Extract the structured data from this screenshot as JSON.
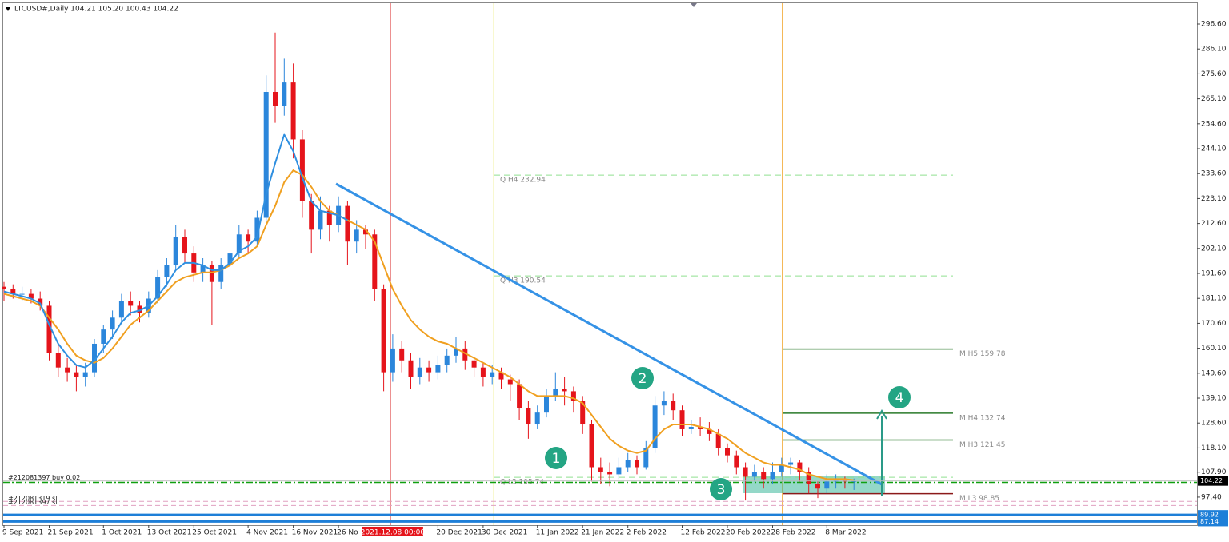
{
  "chart_data": {
    "type": "candlestick",
    "header": "LTCUSD#,Daily  104.21 105.20 100.43 104.22",
    "up_color": "#2b86db",
    "down_color": "#e5141b",
    "ylim": [
      85.6,
      306.7
    ],
    "yticks": [
      {
        "value": 296.6,
        "label": "296.60"
      },
      {
        "value": 286.1,
        "label": "286.10"
      },
      {
        "value": 275.6,
        "label": "275.60"
      },
      {
        "value": 265.1,
        "label": "265.10"
      },
      {
        "value": 254.6,
        "label": "254.60"
      },
      {
        "value": 244.1,
        "label": "244.10"
      },
      {
        "value": 233.6,
        "label": "233.60"
      },
      {
        "value": 223.1,
        "label": "223.10"
      },
      {
        "value": 212.6,
        "label": "212.60"
      },
      {
        "value": 202.1,
        "label": "202.10"
      },
      {
        "value": 191.6,
        "label": "191.60"
      },
      {
        "value": 181.1,
        "label": "181.10"
      },
      {
        "value": 170.6,
        "label": "170.60"
      },
      {
        "value": 160.1,
        "label": "160.10"
      },
      {
        "value": 149.6,
        "label": "149.60"
      },
      {
        "value": 139.1,
        "label": "139.10"
      },
      {
        "value": 128.6,
        "label": "128.60"
      },
      {
        "value": 118.1,
        "label": "118.10"
      },
      {
        "value": 107.9,
        "label": "107.90"
      },
      {
        "value": 97.4,
        "label": "97.40"
      }
    ],
    "separator": "2021.12.08 00:00",
    "categories": [
      "9 Sep 2021",
      null,
      null,
      null,
      null,
      "21 Sep 2021",
      null,
      null,
      null,
      null,
      null,
      "1 Oct 2021",
      null,
      null,
      null,
      null,
      "13 Oct 2021",
      null,
      null,
      null,
      null,
      "25 Oct 2021",
      null,
      null,
      null,
      null,
      null,
      "4 Nov 2021",
      null,
      null,
      null,
      null,
      "16 Nov 2021",
      null,
      null,
      null,
      null,
      "26 No",
      null,
      null,
      null,
      null,
      null,
      "2021.12.08 00:00",
      null,
      null,
      null,
      null,
      "20 Dec 2021",
      null,
      null,
      null,
      null,
      "30 Dec 2021",
      null,
      null,
      null,
      null,
      null,
      "11 Jan 2022",
      null,
      null,
      null,
      null,
      "21 Jan 2022",
      null,
      null,
      null,
      null,
      "2 Feb 2022",
      null,
      null,
      null,
      null,
      null,
      "12 Feb 2022",
      null,
      null,
      null,
      null,
      "20 Feb 2022",
      null,
      null,
      null,
      null,
      "28 Feb 2022",
      null,
      null,
      null,
      null,
      null,
      "8 Mar 2022",
      null,
      null,
      null
    ],
    "candles": [
      [
        186,
        188,
        180,
        185
      ],
      [
        185,
        187,
        181,
        183
      ],
      [
        183,
        186,
        180,
        183
      ],
      [
        183,
        185,
        179,
        181
      ],
      [
        181,
        184,
        176,
        178
      ],
      [
        178,
        180,
        155,
        158
      ],
      [
        158,
        162,
        148,
        152
      ],
      [
        152,
        156,
        146,
        150
      ],
      [
        150,
        153,
        142,
        148
      ],
      [
        148,
        154,
        144,
        150
      ],
      [
        150,
        164,
        148,
        162
      ],
      [
        162,
        170,
        158,
        168
      ],
      [
        168,
        176,
        164,
        173
      ],
      [
        173,
        183,
        171,
        180
      ],
      [
        180,
        184,
        174,
        178
      ],
      [
        178,
        180,
        171,
        175
      ],
      [
        175,
        184,
        173,
        181
      ],
      [
        181,
        193,
        179,
        190
      ],
      [
        190,
        198,
        186,
        195
      ],
      [
        195,
        212,
        193,
        207
      ],
      [
        207,
        210,
        196,
        200
      ],
      [
        200,
        203,
        188,
        192
      ],
      [
        192,
        198,
        188,
        195
      ],
      [
        195,
        197,
        170,
        188
      ],
      [
        188,
        198,
        185,
        195
      ],
      [
        195,
        203,
        192,
        200
      ],
      [
        200,
        212,
        198,
        208
      ],
      [
        208,
        210,
        200,
        205
      ],
      [
        205,
        218,
        203,
        215
      ],
      [
        215,
        275,
        213,
        268
      ],
      [
        268,
        293,
        255,
        262
      ],
      [
        262,
        282,
        258,
        272
      ],
      [
        272,
        280,
        240,
        248
      ],
      [
        248,
        252,
        215,
        222
      ],
      [
        222,
        225,
        200,
        210
      ],
      [
        210,
        224,
        206,
        218
      ],
      [
        218,
        220,
        205,
        212
      ],
      [
        212,
        224,
        209,
        220
      ],
      [
        220,
        222,
        195,
        205
      ],
      [
        205,
        214,
        200,
        210
      ],
      [
        210,
        212,
        202,
        208
      ],
      [
        208,
        210,
        180,
        185
      ],
      [
        185,
        187,
        142,
        150
      ],
      [
        150,
        166,
        146,
        160
      ],
      [
        160,
        163,
        150,
        155
      ],
      [
        155,
        158,
        143,
        148
      ],
      [
        148,
        156,
        145,
        152
      ],
      [
        152,
        155,
        146,
        150
      ],
      [
        150,
        157,
        147,
        153
      ],
      [
        153,
        160,
        150,
        157
      ],
      [
        157,
        165,
        154,
        160
      ],
      [
        160,
        163,
        151,
        155
      ],
      [
        155,
        156,
        148,
        152
      ],
      [
        152,
        154,
        144,
        148
      ],
      [
        148,
        153,
        145,
        150
      ],
      [
        150,
        152,
        143,
        147
      ],
      [
        147,
        149,
        138,
        145
      ],
      [
        145,
        147,
        130,
        135
      ],
      [
        135,
        138,
        122,
        128
      ],
      [
        128,
        136,
        126,
        133
      ],
      [
        133,
        143,
        131,
        140
      ],
      [
        140,
        150,
        138,
        143
      ],
      [
        143,
        148,
        136,
        142
      ],
      [
        142,
        144,
        133,
        138
      ],
      [
        138,
        140,
        124,
        128
      ],
      [
        128,
        130,
        104,
        110
      ],
      [
        110,
        114,
        103,
        108
      ],
      [
        108,
        112,
        102,
        107
      ],
      [
        107,
        114,
        105,
        110
      ],
      [
        110,
        116,
        108,
        113
      ],
      [
        113,
        115,
        107,
        110
      ],
      [
        110,
        121,
        109,
        118
      ],
      [
        118,
        140,
        116,
        136
      ],
      [
        136,
        142,
        132,
        138
      ],
      [
        138,
        141,
        130,
        134
      ],
      [
        134,
        136,
        123,
        126
      ],
      [
        126,
        130,
        124,
        127
      ],
      [
        127,
        131,
        123,
        126
      ],
      [
        126,
        129,
        121,
        124
      ],
      [
        124,
        126,
        115,
        118
      ],
      [
        118,
        120,
        112,
        115
      ],
      [
        115,
        117,
        107,
        110
      ],
      [
        110,
        112,
        96,
        106
      ],
      [
        106,
        111,
        104,
        108
      ],
      [
        108,
        110,
        101,
        105
      ],
      [
        105,
        112,
        103,
        108
      ],
      [
        108,
        114,
        106,
        111
      ],
      [
        111,
        114,
        107,
        112
      ],
      [
        112,
        113,
        104,
        108
      ],
      [
        108,
        110,
        99,
        103
      ],
      [
        103,
        104,
        97,
        101
      ],
      [
        101,
        107,
        99,
        104
      ],
      [
        104,
        107,
        101,
        105
      ],
      [
        105,
        106,
        101,
        104
      ],
      [
        104.21,
        105.2,
        100.43,
        104.22
      ]
    ],
    "series": [
      {
        "color": "#f0a020",
        "values": [
          183,
          182,
          181,
          180,
          178,
          173,
          168,
          162,
          157,
          155,
          154,
          156,
          160,
          165,
          170,
          173,
          176,
          180,
          184,
          188,
          190,
          191,
          192,
          192,
          193,
          195,
          198,
          200,
          203,
          212,
          220,
          230,
          235,
          233,
          228,
          222,
          218,
          216,
          214,
          212,
          210,
          205,
          195,
          185,
          178,
          172,
          168,
          165,
          163,
          162,
          160,
          158,
          156,
          154,
          152,
          150,
          148,
          145,
          142,
          140,
          140,
          140,
          140,
          139,
          137,
          132,
          127,
          122,
          119,
          117,
          116,
          117,
          122,
          126,
          128,
          128,
          128,
          127,
          126,
          124,
          122,
          119,
          116,
          114,
          112,
          111,
          111,
          110,
          109,
          107,
          106,
          105,
          105,
          105,
          104.5
        ]
      },
      {
        "color": "#2f8fe0",
        "values": [
          184,
          183,
          182,
          181,
          179,
          170,
          162,
          157,
          153,
          152,
          155,
          160,
          165,
          171,
          175,
          176,
          178,
          182,
          187,
          193,
          196,
          196,
          195,
          193,
          193,
          196,
          201,
          203,
          207,
          225,
          238,
          250,
          243,
          232,
          222,
          218,
          217,
          216,
          214,
          null,
          null,
          null,
          null,
          null,
          null,
          null,
          null,
          null,
          null,
          null,
          null,
          null,
          null,
          null,
          null,
          null,
          null,
          null,
          null,
          null,
          null,
          null,
          null,
          null,
          null,
          null,
          null,
          null,
          null,
          null,
          null,
          null,
          null,
          null,
          null,
          null,
          null,
          null,
          null,
          null,
          null,
          null,
          null,
          null,
          null,
          null,
          null,
          null,
          null,
          null,
          null,
          null,
          null,
          null,
          null
        ]
      }
    ],
    "pivots": [
      {
        "label": "Q  H4 232.94",
        "value": 232.94,
        "color": "#90e090",
        "style": "dash"
      },
      {
        "label": "Q  H3 190.54",
        "value": 190.54,
        "color": "#90e090",
        "style": "dash"
      },
      {
        "label": "Q  L3 105.74",
        "value": 105.74,
        "color": "#90e090",
        "style": "dash"
      },
      {
        "label": "M  H5 159.78",
        "value": 159.78,
        "color": "#2a7a2a",
        "style": "solid"
      },
      {
        "label": "M  H4 132.74",
        "value": 132.74,
        "color": "#2a7a2a",
        "style": "solid"
      },
      {
        "label": "M  H3 121.45",
        "value": 121.45,
        "color": "#2a7a2a",
        "style": "solid"
      },
      {
        "label": "M  L3 98.85",
        "value": 98.85,
        "color": "#8b1a1a",
        "style": "solid"
      }
    ],
    "orders": [
      {
        "label": "#212081397 buy 0.02",
        "value": 103.6,
        "color": "#10a010"
      },
      {
        "label": "#212081319 sl",
        "value": 95.6,
        "color": "#e0a0c0"
      },
      {
        "label": "#212081397 sl",
        "value": 93.9,
        "color": "#e0a0c0"
      }
    ],
    "price_markers": [
      {
        "value": 104.22,
        "color": "#000000"
      },
      {
        "value": 89.92,
        "color": "#1e7fd8"
      },
      {
        "value": 87.14,
        "color": "#1e7fd8"
      }
    ],
    "annotations": [
      "1",
      "2",
      "3",
      "4"
    ]
  }
}
